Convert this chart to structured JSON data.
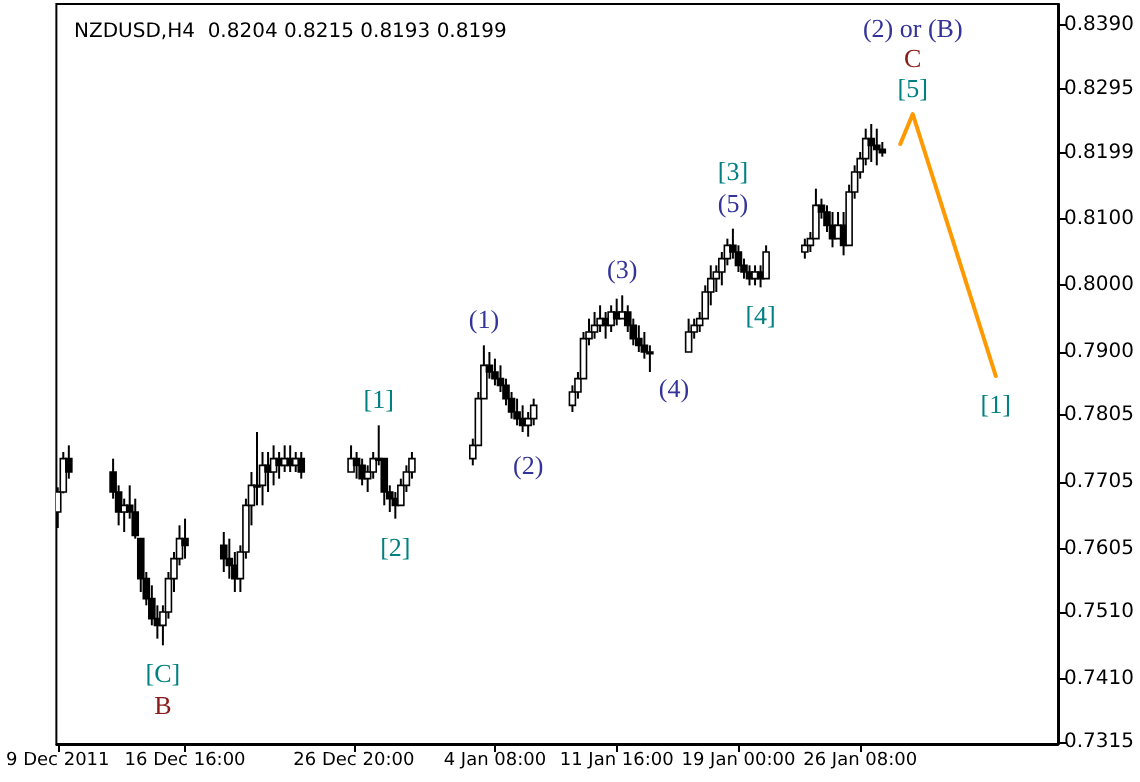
{
  "chart_data": {
    "type": "candlestick",
    "title": "NZDUSD,H4  0.8204 0.8215 0.8193 0.8199",
    "xlim": [
      "2011-12-08T22:00",
      "2012-02-07T06:00"
    ],
    "xticks": [
      {
        "value": "2011-12-09T00:00",
        "label": "9 Dec 2011"
      },
      {
        "value": "2011-12-16T16:00",
        "label": "16 Dec 16:00"
      },
      {
        "value": "2011-12-26T20:00",
        "label": "26 Dec 20:00"
      },
      {
        "value": "2012-01-04T08:00",
        "label": "4 Jan 08:00"
      },
      {
        "value": "2012-01-11T16:00",
        "label": "11 Jan 16:00"
      },
      {
        "value": "2012-01-19T00:00",
        "label": "19 Jan 00:00"
      },
      {
        "value": "2012-01-26T08:00",
        "label": "26 Jan 08:00"
      }
    ],
    "ylim": [
      0.7312,
      0.8422
    ],
    "yticks": [
      {
        "value": 0.839,
        "label": "0.8390"
      },
      {
        "value": 0.8295,
        "label": "0.8295"
      },
      {
        "value": 0.8199,
        "label": "0.8199"
      },
      {
        "value": 0.81,
        "label": "0.8100"
      },
      {
        "value": 0.8,
        "label": "0.8000"
      },
      {
        "value": 0.79,
        "label": "0.7900"
      },
      {
        "value": 0.7805,
        "label": "0.7805"
      },
      {
        "value": 0.7705,
        "label": "0.7705"
      },
      {
        "value": 0.7605,
        "label": "0.7605"
      },
      {
        "value": 0.751,
        "label": "0.7510"
      },
      {
        "value": 0.741,
        "label": "0.7410"
      },
      {
        "value": 0.7315,
        "label": "0.7315"
      }
    ],
    "series": [
      {
        "color": "#000000",
        "x": [
          "2011-12-09T00:00",
          "2011-12-09T08:00",
          "2011-12-09T16:00",
          "2011-12-12T08:00",
          "2011-12-12T16:00",
          "2011-12-13T00:00",
          "2011-12-13T08:00",
          "2011-12-13T16:00",
          "2011-12-14T00:00",
          "2011-12-14T08:00",
          "2011-12-14T16:00",
          "2011-12-15T00:00",
          "2011-12-15T08:00",
          "2011-12-15T16:00",
          "2011-12-16T00:00",
          "2011-12-16T08:00",
          "2011-12-16T16:00",
          "2011-12-19T00:00",
          "2011-12-19T08:00",
          "2011-12-19T16:00",
          "2011-12-20T00:00",
          "2011-12-20T08:00",
          "2011-12-20T16:00",
          "2011-12-21T00:00",
          "2011-12-21T08:00",
          "2011-12-21T16:00",
          "2011-12-22T00:00",
          "2011-12-22T08:00",
          "2011-12-22T16:00",
          "2011-12-23T00:00",
          "2011-12-23T08:00",
          "2011-12-23T16:00",
          "2011-12-26T16:00",
          "2011-12-27T00:00",
          "2011-12-27T08:00",
          "2011-12-27T16:00",
          "2011-12-28T00:00",
          "2011-12-28T08:00",
          "2011-12-28T16:00",
          "2011-12-29T00:00",
          "2011-12-29T08:00",
          "2011-12-29T16:00",
          "2011-12-30T00:00",
          "2011-12-30T08:00",
          "2012-01-03T00:00",
          "2012-01-03T08:00",
          "2012-01-03T16:00",
          "2012-01-04T00:00",
          "2012-01-04T08:00",
          "2012-01-04T16:00",
          "2012-01-05T00:00",
          "2012-01-05T08:00",
          "2012-01-05T16:00",
          "2012-01-06T00:00",
          "2012-01-06T08:00",
          "2012-01-06T16:00",
          "2012-01-09T00:00",
          "2012-01-09T08:00",
          "2012-01-09T16:00",
          "2012-01-10T00:00",
          "2012-01-10T08:00",
          "2012-01-10T16:00",
          "2012-01-11T00:00",
          "2012-01-11T08:00",
          "2012-01-11T16:00",
          "2012-01-12T00:00",
          "2012-01-12T08:00",
          "2012-01-12T16:00",
          "2012-01-13T00:00",
          "2012-01-13T08:00",
          "2012-01-13T16:00",
          "2012-01-16T00:00",
          "2012-01-16T08:00",
          "2012-01-16T16:00",
          "2012-01-17T00:00",
          "2012-01-17T08:00",
          "2012-01-17T16:00",
          "2012-01-18T00:00",
          "2012-01-18T08:00",
          "2012-01-18T16:00",
          "2012-01-19T00:00",
          "2012-01-19T08:00",
          "2012-01-19T16:00",
          "2012-01-20T00:00",
          "2012-01-20T08:00",
          "2012-01-20T16:00",
          "2012-01-23T00:00",
          "2012-01-23T08:00",
          "2012-01-23T16:00",
          "2012-01-24T00:00",
          "2012-01-24T08:00",
          "2012-01-24T16:00",
          "2012-01-25T00:00",
          "2012-01-25T08:00",
          "2012-01-25T16:00",
          "2012-01-26T00:00",
          "2012-01-26T08:00",
          "2012-01-26T16:00",
          "2012-01-27T00:00",
          "2012-01-27T08:00",
          "2012-01-27T16:00"
        ],
        "ohlc": [
          [
            0.766,
            0.7697,
            0.7636,
            0.769
          ],
          [
            0.769,
            0.775,
            0.7688,
            0.774
          ],
          [
            0.774,
            0.776,
            0.771,
            0.772
          ],
          [
            0.772,
            0.774,
            0.768,
            0.769
          ],
          [
            0.769,
            0.77,
            0.764,
            0.766
          ],
          [
            0.766,
            0.768,
            0.763,
            0.767
          ],
          [
            0.767,
            0.77,
            0.765,
            0.766
          ],
          [
            0.766,
            0.768,
            0.762,
            0.7625
          ],
          [
            0.762,
            0.762,
            0.754,
            0.756
          ],
          [
            0.756,
            0.757,
            0.752,
            0.753
          ],
          [
            0.753,
            0.755,
            0.749,
            0.75
          ],
          [
            0.75,
            0.752,
            0.747,
            0.749
          ],
          [
            0.749,
            0.752,
            0.746,
            0.751
          ],
          [
            0.751,
            0.757,
            0.75,
            0.756
          ],
          [
            0.756,
            0.76,
            0.754,
            0.759
          ],
          [
            0.759,
            0.764,
            0.758,
            0.762
          ],
          [
            0.762,
            0.765,
            0.759,
            0.761
          ],
          [
            0.761,
            0.763,
            0.757,
            0.759
          ],
          [
            0.759,
            0.762,
            0.756,
            0.758
          ],
          [
            0.758,
            0.76,
            0.754,
            0.756
          ],
          [
            0.756,
            0.761,
            0.754,
            0.76
          ],
          [
            0.76,
            0.768,
            0.759,
            0.767
          ],
          [
            0.767,
            0.772,
            0.764,
            0.77
          ],
          [
            0.77,
            0.778,
            0.767,
            0.77
          ],
          [
            0.77,
            0.775,
            0.767,
            0.773
          ],
          [
            0.773,
            0.775,
            0.769,
            0.772
          ],
          [
            0.772,
            0.776,
            0.77,
            0.774
          ],
          [
            0.774,
            0.775,
            0.771,
            0.773
          ],
          [
            0.773,
            0.776,
            0.772,
            0.774
          ],
          [
            0.774,
            0.776,
            0.772,
            0.773
          ],
          [
            0.773,
            0.775,
            0.772,
            0.774
          ],
          [
            0.774,
            0.775,
            0.771,
            0.772
          ],
          [
            0.772,
            0.776,
            0.772,
            0.774
          ],
          [
            0.774,
            0.775,
            0.771,
            0.773
          ],
          [
            0.773,
            0.774,
            0.77,
            0.771
          ],
          [
            0.771,
            0.773,
            0.769,
            0.772
          ],
          [
            0.772,
            0.775,
            0.771,
            0.774
          ],
          [
            0.774,
            0.779,
            0.773,
            0.774
          ],
          [
            0.774,
            0.774,
            0.767,
            0.769
          ],
          [
            0.769,
            0.77,
            0.766,
            0.768
          ],
          [
            0.768,
            0.769,
            0.765,
            0.767
          ],
          [
            0.767,
            0.771,
            0.767,
            0.77
          ],
          [
            0.77,
            0.773,
            0.769,
            0.772
          ],
          [
            0.772,
            0.775,
            0.771,
            0.774
          ],
          [
            0.774,
            0.777,
            0.773,
            0.776
          ],
          [
            0.776,
            0.784,
            0.776,
            0.783
          ],
          [
            0.783,
            0.791,
            0.783,
            0.788
          ],
          [
            0.788,
            0.79,
            0.786,
            0.787
          ],
          [
            0.787,
            0.789,
            0.785,
            0.786
          ],
          [
            0.786,
            0.788,
            0.784,
            0.785
          ],
          [
            0.785,
            0.786,
            0.782,
            0.783
          ],
          [
            0.783,
            0.784,
            0.78,
            0.781
          ],
          [
            0.781,
            0.783,
            0.779,
            0.78
          ],
          [
            0.78,
            0.782,
            0.778,
            0.779
          ],
          [
            0.779,
            0.781,
            0.7773,
            0.78
          ],
          [
            0.78,
            0.783,
            0.779,
            0.782
          ],
          [
            0.782,
            0.785,
            0.781,
            0.784
          ],
          [
            0.784,
            0.787,
            0.783,
            0.786
          ],
          [
            0.786,
            0.793,
            0.786,
            0.792
          ],
          [
            0.792,
            0.795,
            0.791,
            0.793
          ],
          [
            0.793,
            0.796,
            0.792,
            0.794
          ],
          [
            0.794,
            0.797,
            0.793,
            0.795
          ],
          [
            0.795,
            0.796,
            0.792,
            0.794
          ],
          [
            0.794,
            0.797,
            0.793,
            0.796
          ],
          [
            0.796,
            0.798,
            0.794,
            0.795
          ],
          [
            0.795,
            0.7985,
            0.795,
            0.796
          ],
          [
            0.796,
            0.797,
            0.793,
            0.794
          ],
          [
            0.794,
            0.795,
            0.791,
            0.792
          ],
          [
            0.792,
            0.794,
            0.79,
            0.791
          ],
          [
            0.791,
            0.793,
            0.789,
            0.79
          ],
          [
            0.79,
            0.791,
            0.787,
            0.79
          ],
          [
            0.79,
            0.795,
            0.79,
            0.793
          ],
          [
            0.793,
            0.795,
            0.792,
            0.794
          ],
          [
            0.794,
            0.796,
            0.793,
            0.795
          ],
          [
            0.795,
            0.8,
            0.795,
            0.799
          ],
          [
            0.799,
            0.803,
            0.797,
            0.801
          ],
          [
            0.801,
            0.803,
            0.799,
            0.802
          ],
          [
            0.802,
            0.805,
            0.8,
            0.804
          ],
          [
            0.804,
            0.807,
            0.803,
            0.806
          ],
          [
            0.806,
            0.8085,
            0.804,
            0.805
          ],
          [
            0.805,
            0.806,
            0.802,
            0.803
          ],
          [
            0.803,
            0.804,
            0.801,
            0.802
          ],
          [
            0.802,
            0.803,
            0.8,
            0.801
          ],
          [
            0.801,
            0.803,
            0.8,
            0.802
          ],
          [
            0.802,
            0.803,
            0.7997,
            0.801
          ],
          [
            0.801,
            0.806,
            0.801,
            0.805
          ],
          [
            0.805,
            0.807,
            0.804,
            0.806
          ],
          [
            0.806,
            0.808,
            0.805,
            0.807
          ],
          [
            0.807,
            0.8145,
            0.807,
            0.812
          ],
          [
            0.812,
            0.813,
            0.81,
            0.811
          ],
          [
            0.811,
            0.812,
            0.808,
            0.809
          ],
          [
            0.809,
            0.811,
            0.8057,
            0.807
          ],
          [
            0.807,
            0.811,
            0.807,
            0.809
          ],
          [
            0.809,
            0.811,
            0.8045,
            0.806
          ],
          [
            0.806,
            0.8151,
            0.806,
            0.814
          ],
          [
            0.814,
            0.818,
            0.813,
            0.817
          ],
          [
            0.817,
            0.82,
            0.816,
            0.819
          ],
          [
            0.819,
            0.8235,
            0.818,
            0.822
          ],
          [
            0.822,
            0.8242,
            0.8185,
            0.821
          ],
          [
            0.821,
            0.8235,
            0.818,
            0.8204
          ],
          [
            0.8204,
            0.8215,
            0.8193,
            0.8199
          ]
        ]
      },
      {
        "type": "line",
        "color": "#ff9900",
        "line_style": "solid",
        "x": [
          "2012-01-28T18:00",
          "2012-01-29T12:00",
          "2012-02-03T12:00"
        ],
        "values": [
          0.8212,
          0.8257,
          0.7864
        ]
      }
    ],
    "annotations": [
      {
        "text": "[C]",
        "x": "2011-12-15T08:00",
        "y": 0.746
      },
      {
        "text": "B",
        "x": "2011-12-15T08:00",
        "y": 0.746
      },
      {
        "text": "[1]",
        "x": "2011-12-28T08:00",
        "y": 0.779
      },
      {
        "text": "[2]",
        "x": "2011-12-29T08:00",
        "y": 0.765
      },
      {
        "text": "(1)",
        "x": "2012-01-03T16:00",
        "y": 0.791
      },
      {
        "text": "(2)",
        "x": "2012-01-06T08:00",
        "y": 0.7773
      },
      {
        "text": "(3)",
        "x": "2012-01-12T00:00",
        "y": 0.7985
      },
      {
        "text": "(4)",
        "x": "2012-01-13T16:00",
        "y": 0.787
      },
      {
        "text": "(5)",
        "x": "2012-01-18T16:00",
        "y": 0.8085
      },
      {
        "text": "[3]",
        "x": "2012-01-18T16:00",
        "y": 0.8085
      },
      {
        "text": "[4]",
        "x": "2012-01-20T08:00",
        "y": 0.7997
      },
      {
        "text": "[5]",
        "x": "2012-01-29T12:00",
        "y": 0.8257
      },
      {
        "text": "C",
        "x": "2012-01-29T12:00",
        "y": 0.8257
      },
      {
        "text": "(2) or (B)",
        "x": "2012-01-29T12:00",
        "y": 0.8257
      },
      {
        "text": "[1]",
        "x": "2012-02-03T12:00",
        "y": 0.7864
      }
    ]
  }
}
